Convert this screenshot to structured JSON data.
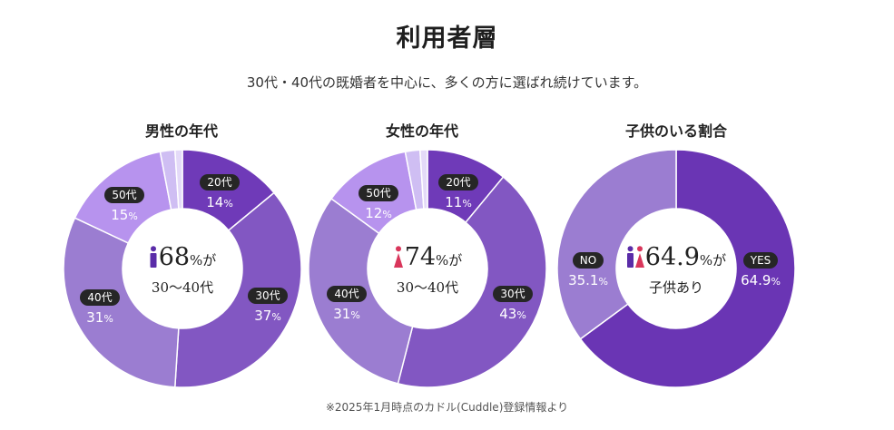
{
  "title": "利用者層",
  "subtitle": "30代・40代の既婚者を中心に、多くの方に選ばれ続けています。",
  "footnote": "※2025年1月時点のカドル(Cuddle)登録情報より",
  "colors": {
    "c20": "#6f3ab8",
    "c30": "#8257c2",
    "c40": "#9b7dd1",
    "c50": "#b793ee",
    "c_light": "#cfbef3",
    "c_lighter": "#e4daf8",
    "yes": "#6a35b4",
    "no": "#9b7dd1",
    "male_icon": "#5a2ca8",
    "female_icon": "#d9365b"
  },
  "chart_data": [
    {
      "type": "pie",
      "title": "男性の年代",
      "categories": [
        "20代",
        "30代",
        "40代",
        "50代",
        "",
        ""
      ],
      "values": [
        14,
        37,
        31,
        15,
        2,
        1
      ],
      "labels": [
        {
          "tag": "20代",
          "value": "14"
        },
        {
          "tag": "30代",
          "value": "37"
        },
        {
          "tag": "40代",
          "value": "31"
        },
        {
          "tag": "50代",
          "value": "15"
        }
      ],
      "unit": "%",
      "center": {
        "value": "68",
        "unit": "%が",
        "text": "30〜40代",
        "icon": "male-icon"
      }
    },
    {
      "type": "pie",
      "title": "女性の年代",
      "categories": [
        "20代",
        "30代",
        "40代",
        "50代",
        "",
        ""
      ],
      "values": [
        11,
        43,
        31,
        12,
        2,
        1
      ],
      "labels": [
        {
          "tag": "20代",
          "value": "11"
        },
        {
          "tag": "30代",
          "value": "43"
        },
        {
          "tag": "40代",
          "value": "31"
        },
        {
          "tag": "50代",
          "value": "12"
        }
      ],
      "unit": "%",
      "center": {
        "value": "74",
        "unit": "%が",
        "text": "30〜40代",
        "icon": "female-icon"
      }
    },
    {
      "type": "pie",
      "title": "子供のいる割合",
      "categories": [
        "YES",
        "NO"
      ],
      "values": [
        64.9,
        35.1
      ],
      "labels": [
        {
          "tag": "YES",
          "value": "64.9"
        },
        {
          "tag": "NO",
          "value": "35.1"
        }
      ],
      "unit": "%",
      "center": {
        "value": "64.9",
        "unit": "%が",
        "text": "子供あり",
        "icon": "couple-icon"
      }
    }
  ]
}
